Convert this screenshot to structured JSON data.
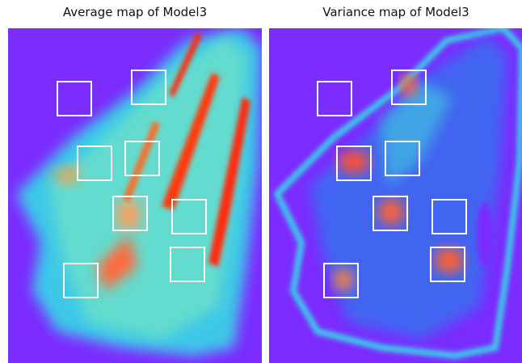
{
  "panels": [
    {
      "title": "Average map of Model3"
    },
    {
      "title": "Variance map of Model3"
    }
  ]
}
